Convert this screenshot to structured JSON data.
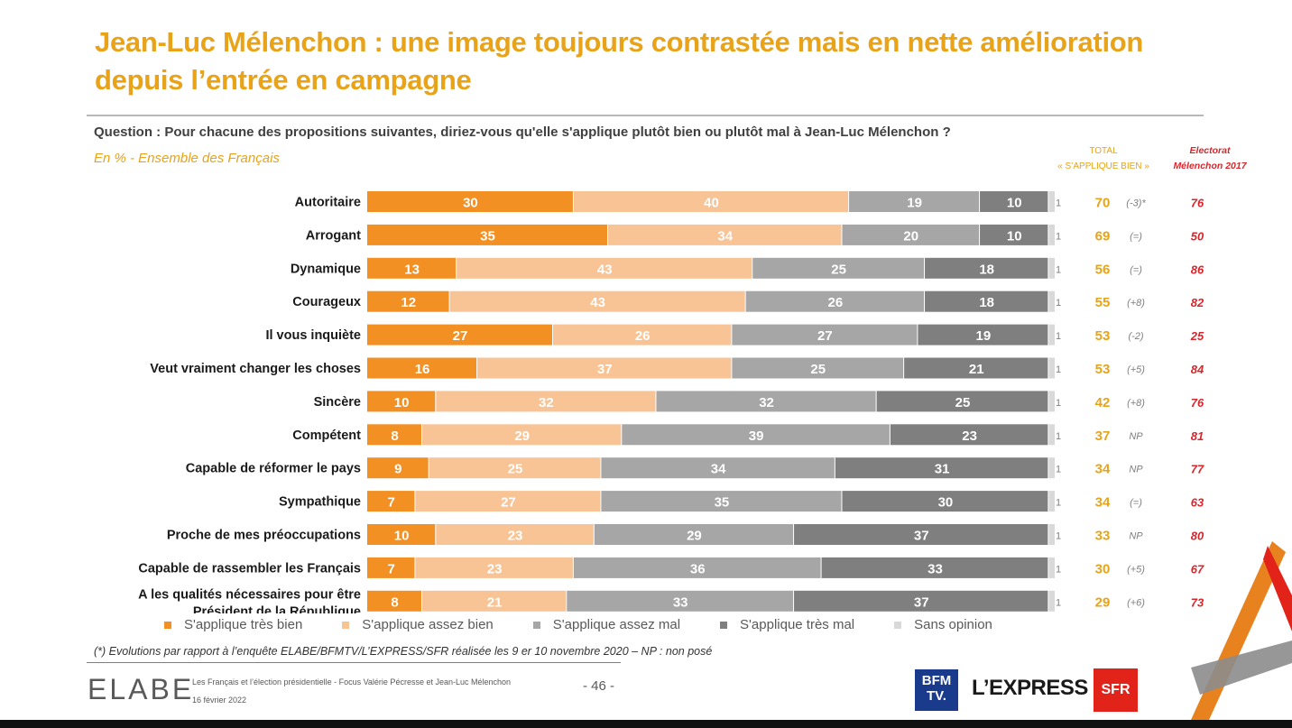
{
  "title": "Jean-Luc Mélenchon : une image toujours contrastée mais en nette amélioration depuis l’entrée en campagne",
  "question": "Question : Pour chacune des propositions suivantes, diriez-vous qu'elle s'applique plutôt bien ou plutôt mal à Jean-Luc Mélenchon ?",
  "subtitle": "En % - Ensemble des Français",
  "header_total_line1": "TOTAL",
  "header_total_line2": "« S’APPLIQUE BIEN »",
  "header_elect_line1": "Electorat",
  "header_elect_line2": "Mélenchon 2017",
  "colors": {
    "tres_bien": "#F29023",
    "assez_bien": "#F8C496",
    "assez_mal": "#A6A6A6",
    "tres_mal": "#7F7F7F",
    "sans_opinion": "#D9D9D9",
    "total": "#E8A318",
    "electorat": "#D9262C"
  },
  "legend": [
    "S'applique très bien",
    "S'applique assez bien",
    "S'applique assez mal",
    "S'applique très mal",
    "Sans opinion"
  ],
  "chart_data": {
    "type": "bar",
    "orientation": "horizontal-stacked",
    "unit": "%",
    "categories": [
      "Autoritaire",
      "Arrogant",
      "Dynamique",
      "Courageux",
      "Il vous inquiète",
      "Veut vraiment changer les choses",
      "Sincère",
      "Compétent",
      "Capable de réformer le pays",
      "Sympathique",
      "Proche de mes préoccupations",
      "Capable de rassembler les Français",
      "A les qualités nécessaires pour être Président de la République"
    ],
    "series": [
      {
        "name": "S'applique très bien",
        "values": [
          30,
          35,
          13,
          12,
          27,
          16,
          10,
          8,
          9,
          7,
          10,
          7,
          8
        ]
      },
      {
        "name": "S'applique assez bien",
        "values": [
          40,
          34,
          43,
          43,
          26,
          37,
          32,
          29,
          25,
          27,
          23,
          23,
          21
        ]
      },
      {
        "name": "S'applique assez mal",
        "values": [
          19,
          20,
          25,
          26,
          27,
          25,
          32,
          39,
          34,
          35,
          29,
          36,
          33
        ]
      },
      {
        "name": "S'applique très mal",
        "values": [
          10,
          10,
          18,
          18,
          19,
          21,
          25,
          23,
          31,
          30,
          37,
          33,
          37
        ]
      },
      {
        "name": "Sans opinion",
        "values": [
          1,
          1,
          1,
          1,
          1,
          1,
          1,
          1,
          1,
          1,
          1,
          1,
          1
        ]
      }
    ],
    "total_applique_bien": [
      70,
      69,
      56,
      55,
      53,
      53,
      42,
      37,
      34,
      34,
      33,
      30,
      29
    ],
    "evolution": [
      "(-3)*",
      "(=)",
      "(=)",
      "(+8)",
      "(-2)",
      "(+5)",
      "(+8)",
      "NP",
      "NP",
      "(=)",
      "NP",
      "(+5)",
      "(+6)"
    ],
    "electorat_melenchon_2017": [
      76,
      50,
      86,
      82,
      25,
      84,
      76,
      81,
      77,
      63,
      80,
      67,
      73
    ]
  },
  "footnote": "(*) Evolutions par rapport à l’enquête ELABE/BFMTV/L’EXPRESS/SFR réalisée les 9 er 10 novembre 2020 – NP : non posé",
  "footer": {
    "logo": "ELABE",
    "study_line1": "Les Français et l’élection présidentielle - Focus Valérie Pécresse et Jean-Luc Mélenchon",
    "study_line2": "16 février 2022",
    "page": "- 46 -",
    "bfm_line1": "BFM",
    "bfm_line2": "TV.",
    "express": "L’EXPRESS",
    "sfr": "SFR"
  }
}
